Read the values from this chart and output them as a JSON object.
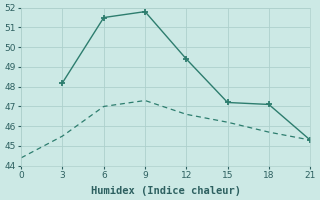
{
  "line1_x": [
    3,
    6,
    9,
    12,
    15,
    18,
    21
  ],
  "line1_y": [
    48.2,
    51.5,
    51.8,
    49.4,
    47.2,
    47.1,
    45.3
  ],
  "line2_x": [
    0,
    3,
    6,
    9,
    12,
    15,
    18,
    21
  ],
  "line2_y": [
    44.4,
    45.5,
    47.0,
    47.3,
    46.6,
    46.2,
    45.7,
    45.3
  ],
  "line_color": "#2d7d6e",
  "background_color": "#cce9e5",
  "grid_color": "#aed0cc",
  "xlabel": "Humidex (Indice chaleur)",
  "xlim": [
    0,
    21
  ],
  "ylim": [
    44,
    52
  ],
  "xticks": [
    0,
    3,
    6,
    9,
    12,
    15,
    18,
    21
  ],
  "yticks": [
    44,
    45,
    46,
    47,
    48,
    49,
    50,
    51,
    52
  ],
  "font_color": "#2d6060",
  "tick_fontsize": 6.5,
  "xlabel_fontsize": 7.5
}
